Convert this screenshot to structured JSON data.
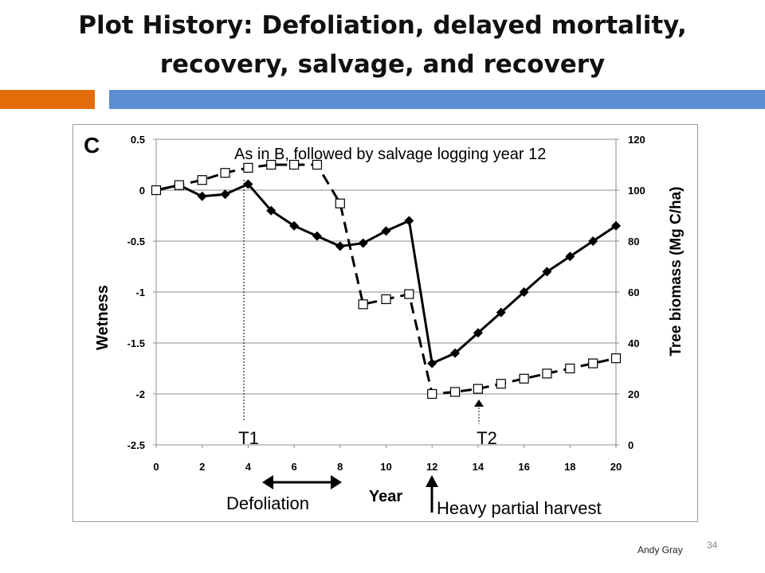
{
  "slide": {
    "title_line1": "Plot History: Defoliation, delayed mortality,",
    "title_line2": "recovery, salvage, and recovery",
    "author": "Andy Gray",
    "page_number": "34",
    "accent_orange": "#E36C0A",
    "accent_blue": "#5B8FD2"
  },
  "chart_data": {
    "type": "line",
    "panel_label": "C",
    "xlabel": "Year",
    "ylabel_left": "Wetness",
    "ylabel_right": "Tree biomass (Mg C/ha)",
    "xlim": [
      0,
      20
    ],
    "ylim_left": [
      -2.5,
      0.5
    ],
    "ylim_right": [
      0,
      120
    ],
    "x_ticks": [
      "0",
      "2",
      "4",
      "6",
      "8",
      "10",
      "12",
      "14",
      "16",
      "18",
      "20"
    ],
    "y_left_ticks": [
      "0.5",
      "0",
      "-0.5",
      "-1",
      "-1.5",
      "-2",
      "-2.5"
    ],
    "y_right_ticks": [
      "120",
      "100",
      "80",
      "60",
      "40",
      "20",
      "0"
    ],
    "grid": "horizontal",
    "series": [
      {
        "style": "solid-diamond",
        "axis": "left",
        "x": [
          0,
          1,
          2,
          3,
          4,
          5,
          6,
          7,
          8,
          9,
          10,
          11,
          12,
          13,
          14,
          15,
          16,
          17,
          18,
          19,
          20
        ],
        "values": [
          0,
          0.05,
          -0.06,
          -0.04,
          0.06,
          -0.2,
          -0.35,
          -0.45,
          -0.55,
          -0.52,
          -0.4,
          -0.3,
          -1.7,
          -1.6,
          -1.4,
          -1.2,
          -1.0,
          -0.8,
          -0.65,
          -0.5,
          -0.35
        ]
      },
      {
        "style": "dashed-open-square",
        "axis": "left",
        "x": [
          0,
          1,
          2,
          3,
          4,
          5,
          6,
          7,
          8,
          9,
          10,
          11,
          12,
          13,
          14,
          15,
          16,
          17,
          18,
          19,
          20
        ],
        "values": [
          0,
          0.05,
          0.1,
          0.17,
          0.22,
          0.25,
          0.25,
          0.25,
          -0.13,
          -1.12,
          -1.07,
          -1.02,
          -2.0,
          -1.98,
          -1.95,
          -1.9,
          -1.85,
          -1.8,
          -1.75,
          -1.7,
          -1.65
        ]
      }
    ],
    "annotations": {
      "top_note": "As in B, followed by salvage logging year 12",
      "t1": "T1",
      "t2": "T2",
      "defoliation": "Defoliation",
      "harvest": "Heavy partial harvest"
    }
  }
}
